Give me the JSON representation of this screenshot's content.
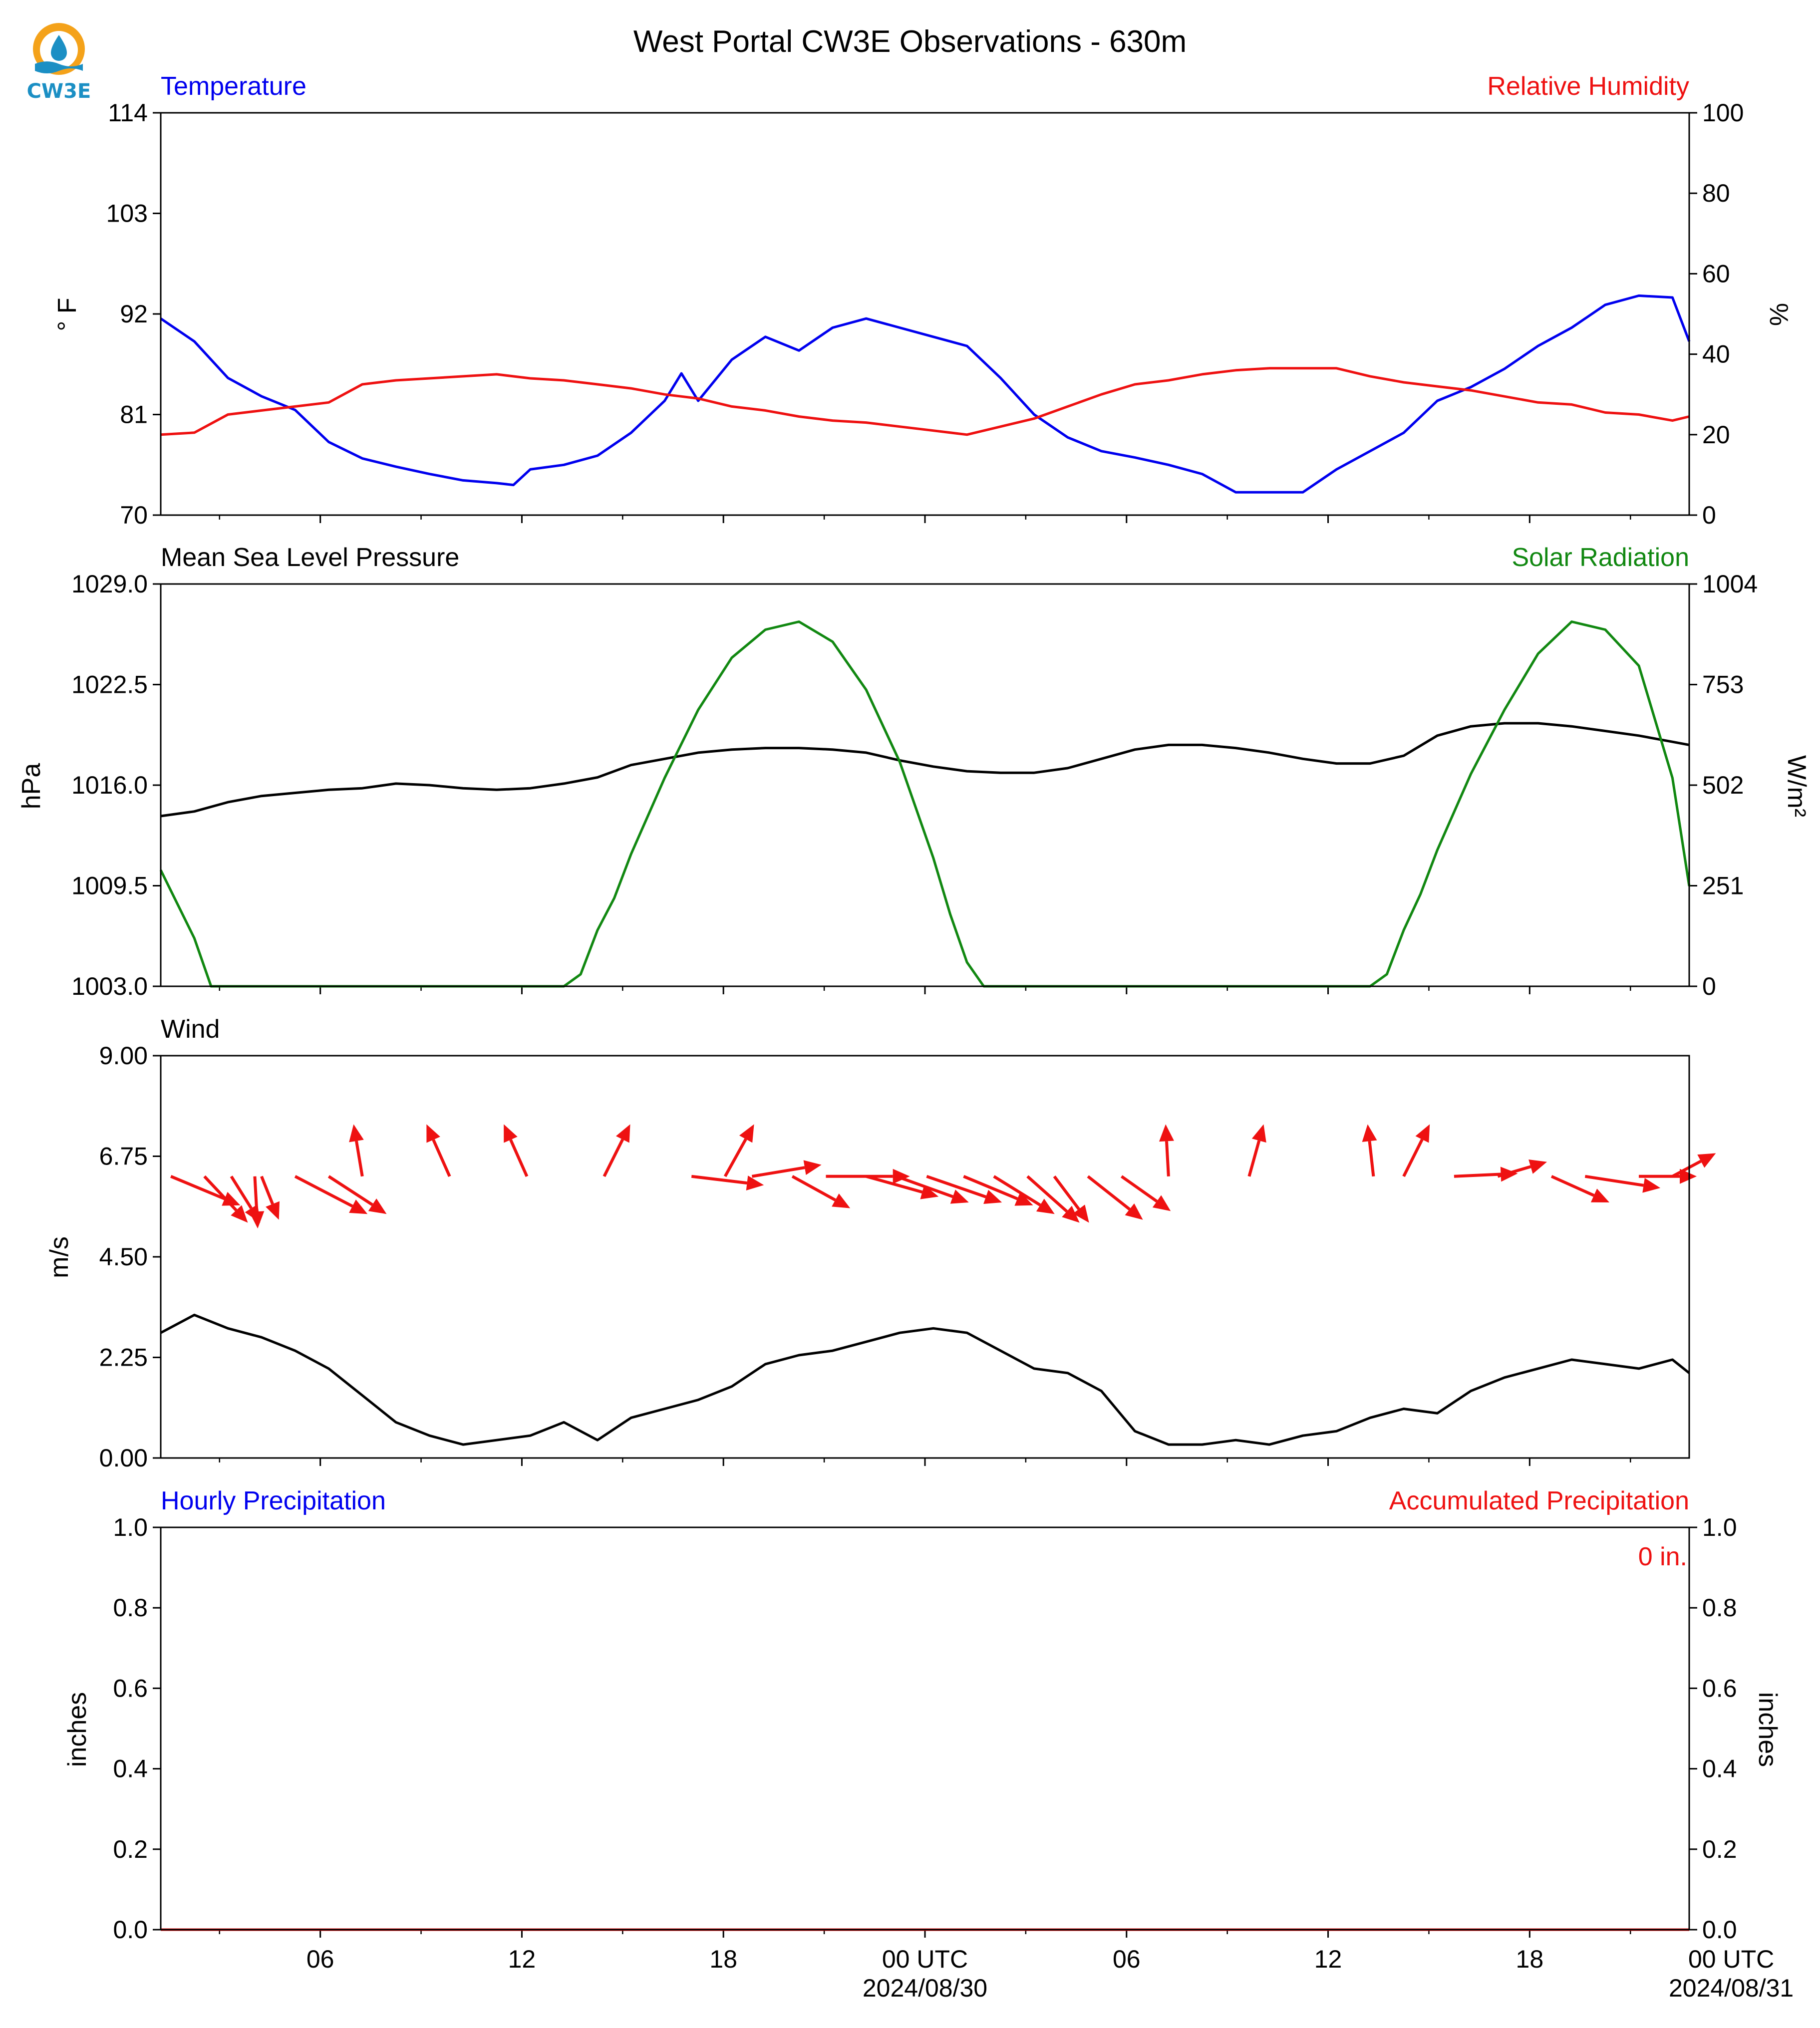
{
  "title": "West Portal CW3E Observations - 630m",
  "logo": {
    "text": "CW3E",
    "icon": "cw3e-logo-icon",
    "color": "#1b8fc4"
  },
  "colors": {
    "blue": "#0000ee",
    "red": "#ee1111",
    "green": "#118811",
    "black": "#000000"
  },
  "x_axis": {
    "start_hour": 0,
    "end_hour": 45.5,
    "tick_labels": [
      {
        "hour": 4.75,
        "label": "06"
      },
      {
        "hour": 10.75,
        "label": "12"
      },
      {
        "hour": 16.75,
        "label": "18"
      },
      {
        "hour": 22.75,
        "label": "00 UTC",
        "sublabel": "2024/08/30"
      },
      {
        "hour": 28.75,
        "label": "06"
      },
      {
        "hour": 34.75,
        "label": "12"
      },
      {
        "hour": 40.75,
        "label": "18"
      },
      {
        "hour": 46.75,
        "label": "00 UTC",
        "sublabel": "2024/08/31"
      }
    ]
  },
  "chart_data": [
    {
      "type": "line",
      "panel": "temperature-humidity",
      "left_title": "Temperature",
      "right_title": "Relative Humidity",
      "ylabel_left": "° F",
      "ylabel_right": "%",
      "ylim_left": [
        70,
        114
      ],
      "yticks_left": [
        "70",
        "81",
        "92",
        "103",
        "114"
      ],
      "ylim_right": [
        0,
        100
      ],
      "yticks_right": [
        "0",
        "20",
        "40",
        "60",
        "80",
        "100"
      ],
      "series": [
        {
          "name": "Temperature",
          "axis": "left",
          "color": "#0000ee",
          "x": [
            0,
            1,
            2,
            3,
            4,
            5,
            6,
            7,
            8,
            9,
            10,
            10.5,
            11,
            12,
            13,
            14,
            15,
            15.5,
            16,
            17,
            18,
            19,
            20,
            21,
            22,
            23,
            24,
            25,
            26,
            27,
            28,
            29,
            30,
            31,
            32,
            33,
            34,
            35,
            36,
            37,
            38,
            39,
            40,
            41,
            42,
            43,
            44,
            45,
            45.5
          ],
          "y": [
            91.5,
            89,
            85,
            83,
            81.5,
            78,
            76.2,
            75.3,
            74.5,
            73.8,
            73.5,
            73.3,
            75,
            75.5,
            76.5,
            79,
            82.5,
            85.5,
            82.5,
            87,
            89.5,
            88,
            90.5,
            91.5,
            90.5,
            89.5,
            88.5,
            85,
            81,
            78.5,
            77,
            76.3,
            75.5,
            74.5,
            72.5,
            72.5,
            72.5,
            75,
            77,
            79,
            82.5,
            84,
            86,
            88.5,
            90.5,
            93,
            94,
            93.8,
            89
          ]
        },
        {
          "name": "Relative Humidity",
          "axis": "right",
          "color": "#ee1111",
          "x": [
            0,
            1,
            2,
            3,
            4,
            5,
            6,
            7,
            8,
            9,
            10,
            11,
            12,
            13,
            14,
            15,
            16,
            17,
            18,
            19,
            20,
            21,
            22,
            23,
            24,
            25,
            26,
            27,
            28,
            29,
            30,
            31,
            32,
            33,
            34,
            35,
            36,
            37,
            38,
            39,
            40,
            41,
            42,
            43,
            44,
            45,
            45.5
          ],
          "y": [
            20,
            20.5,
            25,
            26,
            27,
            28,
            32.5,
            33.5,
            34,
            34.5,
            35,
            34,
            33.5,
            32.5,
            31.5,
            30,
            29,
            27,
            26,
            24.5,
            23.5,
            23,
            22,
            21,
            20,
            22,
            24,
            27,
            30,
            32.5,
            33.5,
            35,
            36,
            36.5,
            36.5,
            36.5,
            34.5,
            33,
            32,
            31,
            29.5,
            28,
            27.5,
            25.5,
            25,
            23.5,
            24.5
          ]
        }
      ]
    },
    {
      "type": "line",
      "panel": "pressure-solar",
      "left_title": "Mean Sea Level Pressure",
      "right_title": "Solar Radiation",
      "ylabel_left": "hPa",
      "ylabel_right": "W/m²",
      "ylim_left": [
        1003.0,
        1029.0
      ],
      "yticks_left": [
        "1003.0",
        "1009.5",
        "1016.0",
        "1022.5",
        "1029.0"
      ],
      "ylim_right": [
        0,
        1004
      ],
      "yticks_right": [
        "0",
        "251",
        "502",
        "753",
        "1004"
      ],
      "series": [
        {
          "name": "Mean Sea Level Pressure",
          "axis": "left",
          "color": "#000000",
          "x": [
            0,
            1,
            2,
            3,
            4,
            5,
            6,
            7,
            8,
            9,
            10,
            11,
            12,
            13,
            14,
            15,
            16,
            17,
            18,
            19,
            20,
            21,
            22,
            23,
            24,
            25,
            26,
            27,
            28,
            29,
            30,
            31,
            32,
            33,
            34,
            35,
            36,
            37,
            38,
            39,
            40,
            41,
            42,
            43,
            44,
            45,
            45.5
          ],
          "y": [
            1014.0,
            1014.3,
            1014.9,
            1015.3,
            1015.5,
            1015.7,
            1015.8,
            1016.1,
            1016.0,
            1015.8,
            1015.7,
            1015.8,
            1016.1,
            1016.5,
            1017.3,
            1017.7,
            1018.1,
            1018.3,
            1018.4,
            1018.4,
            1018.3,
            1018.1,
            1017.6,
            1017.2,
            1016.9,
            1016.8,
            1016.8,
            1017.1,
            1017.7,
            1018.3,
            1018.6,
            1018.6,
            1018.4,
            1018.1,
            1017.7,
            1017.4,
            1017.4,
            1017.9,
            1019.2,
            1019.8,
            1020.0,
            1020.0,
            1019.8,
            1019.5,
            1019.2,
            1018.8,
            1018.6
          ]
        },
        {
          "name": "Solar Radiation",
          "axis": "right",
          "color": "#118811",
          "x": [
            0,
            1,
            1.5,
            2,
            8,
            12,
            12.5,
            13,
            13.5,
            14,
            15,
            16,
            17,
            18,
            19,
            20,
            21,
            22,
            23,
            23.5,
            24,
            24.5,
            25,
            31,
            36,
            36.5,
            37,
            37.5,
            38,
            39,
            40,
            41,
            42,
            43,
            44,
            45,
            45.5
          ],
          "y": [
            290,
            120,
            0,
            0,
            0,
            0,
            30,
            140,
            220,
            330,
            520,
            690,
            820,
            890,
            910,
            860,
            740,
            560,
            320,
            180,
            60,
            0,
            0,
            0,
            0,
            30,
            140,
            230,
            340,
            530,
            690,
            830,
            910,
            890,
            800,
            520,
            250
          ]
        }
      ]
    },
    {
      "type": "line",
      "panel": "wind",
      "left_title": "Wind",
      "ylabel_left": "m/s",
      "ylim_left": [
        0.0,
        9.0
      ],
      "yticks_left": [
        "0.00",
        "2.25",
        "4.50",
        "6.75",
        "9.00"
      ],
      "series": [
        {
          "name": "Wind Speed",
          "axis": "left",
          "color": "#000000",
          "x": [
            0,
            1,
            2,
            3,
            4,
            5,
            6,
            7,
            8,
            9,
            10,
            11,
            12,
            13,
            14,
            15,
            16,
            17,
            18,
            19,
            20,
            21,
            22,
            23,
            24,
            25,
            26,
            27,
            28,
            29,
            30,
            31,
            32,
            33,
            34,
            35,
            36,
            37,
            38,
            39,
            40,
            41,
            42,
            43,
            44,
            45,
            45.5
          ],
          "y": [
            2.8,
            3.2,
            2.9,
            2.7,
            2.4,
            2.0,
            1.4,
            0.8,
            0.5,
            0.3,
            0.4,
            0.5,
            0.8,
            0.4,
            0.9,
            1.1,
            1.3,
            1.6,
            2.1,
            2.3,
            2.4,
            2.6,
            2.8,
            2.9,
            2.8,
            2.4,
            2.0,
            1.9,
            1.5,
            0.6,
            0.3,
            0.3,
            0.4,
            0.3,
            0.5,
            0.6,
            0.9,
            1.1,
            1.0,
            1.5,
            1.8,
            2.0,
            2.2,
            2.1,
            2.0,
            2.2,
            1.9
          ]
        }
      ],
      "vectors": {
        "color": "#ee1111",
        "hour": [
          0.3,
          1.3,
          2.1,
          2.8,
          3.0,
          4.0,
          5.0,
          6.0,
          8.6,
          10.9,
          13.2,
          15.8,
          16.8,
          17.6,
          18.8,
          19.8,
          21.0,
          21.9,
          22.8,
          23.9,
          24.8,
          25.8,
          26.6,
          27.6,
          28.6,
          30.0,
          32.4,
          36.1,
          37.0,
          38.5,
          39.8,
          41.4,
          42.4,
          44.0,
          45.0
        ],
        "u": [
          2.4,
          1.5,
          1.0,
          0.1,
          0.6,
          2.5,
          2.0,
          -0.3,
          -0.8,
          -0.8,
          0.9,
          2.5,
          1.0,
          2.4,
          2.0,
          2.9,
          2.5,
          2.5,
          2.6,
          2.4,
          2.1,
          1.8,
          1.2,
          1.9,
          1.7,
          -0.1,
          0.5,
          -0.2,
          0.9,
          2.2,
          1.7,
          2.0,
          2.6,
          2.0,
          1.5
        ],
        "v": [
          -1.0,
          -1.6,
          -1.6,
          -1.8,
          -1.5,
          -1.3,
          -1.3,
          1.8,
          1.8,
          1.8,
          1.8,
          -0.3,
          1.8,
          0.4,
          -1.1,
          0.0,
          -0.7,
          -0.9,
          -0.9,
          -1.0,
          -1.3,
          -1.6,
          -1.6,
          -1.5,
          -1.2,
          1.8,
          1.8,
          1.8,
          1.8,
          0.1,
          0.5,
          -0.9,
          -0.4,
          0.0,
          0.8
        ]
      }
    },
    {
      "type": "line",
      "panel": "precipitation",
      "left_title": "Hourly Precipitation",
      "right_title": "Accumulated Precipitation",
      "ylabel_left": "inches",
      "ylabel_right": "inches",
      "ylim_left": [
        0.0,
        1.0
      ],
      "yticks_left": [
        "0.0",
        "0.2",
        "0.4",
        "0.6",
        "0.8",
        "1.0"
      ],
      "ylim_right": [
        0.0,
        1.0
      ],
      "yticks_right": [
        "0.0",
        "0.2",
        "0.4",
        "0.6",
        "0.8",
        "1.0"
      ],
      "annotation": "0 in.",
      "series": [
        {
          "name": "Hourly Precipitation",
          "axis": "left",
          "color": "#0000ee",
          "x": [
            0,
            45.5
          ],
          "y": [
            0,
            0
          ]
        },
        {
          "name": "Accumulated Precipitation",
          "axis": "right",
          "color": "#ee1111",
          "x": [
            0,
            45.5
          ],
          "y": [
            0,
            0
          ]
        }
      ]
    }
  ]
}
